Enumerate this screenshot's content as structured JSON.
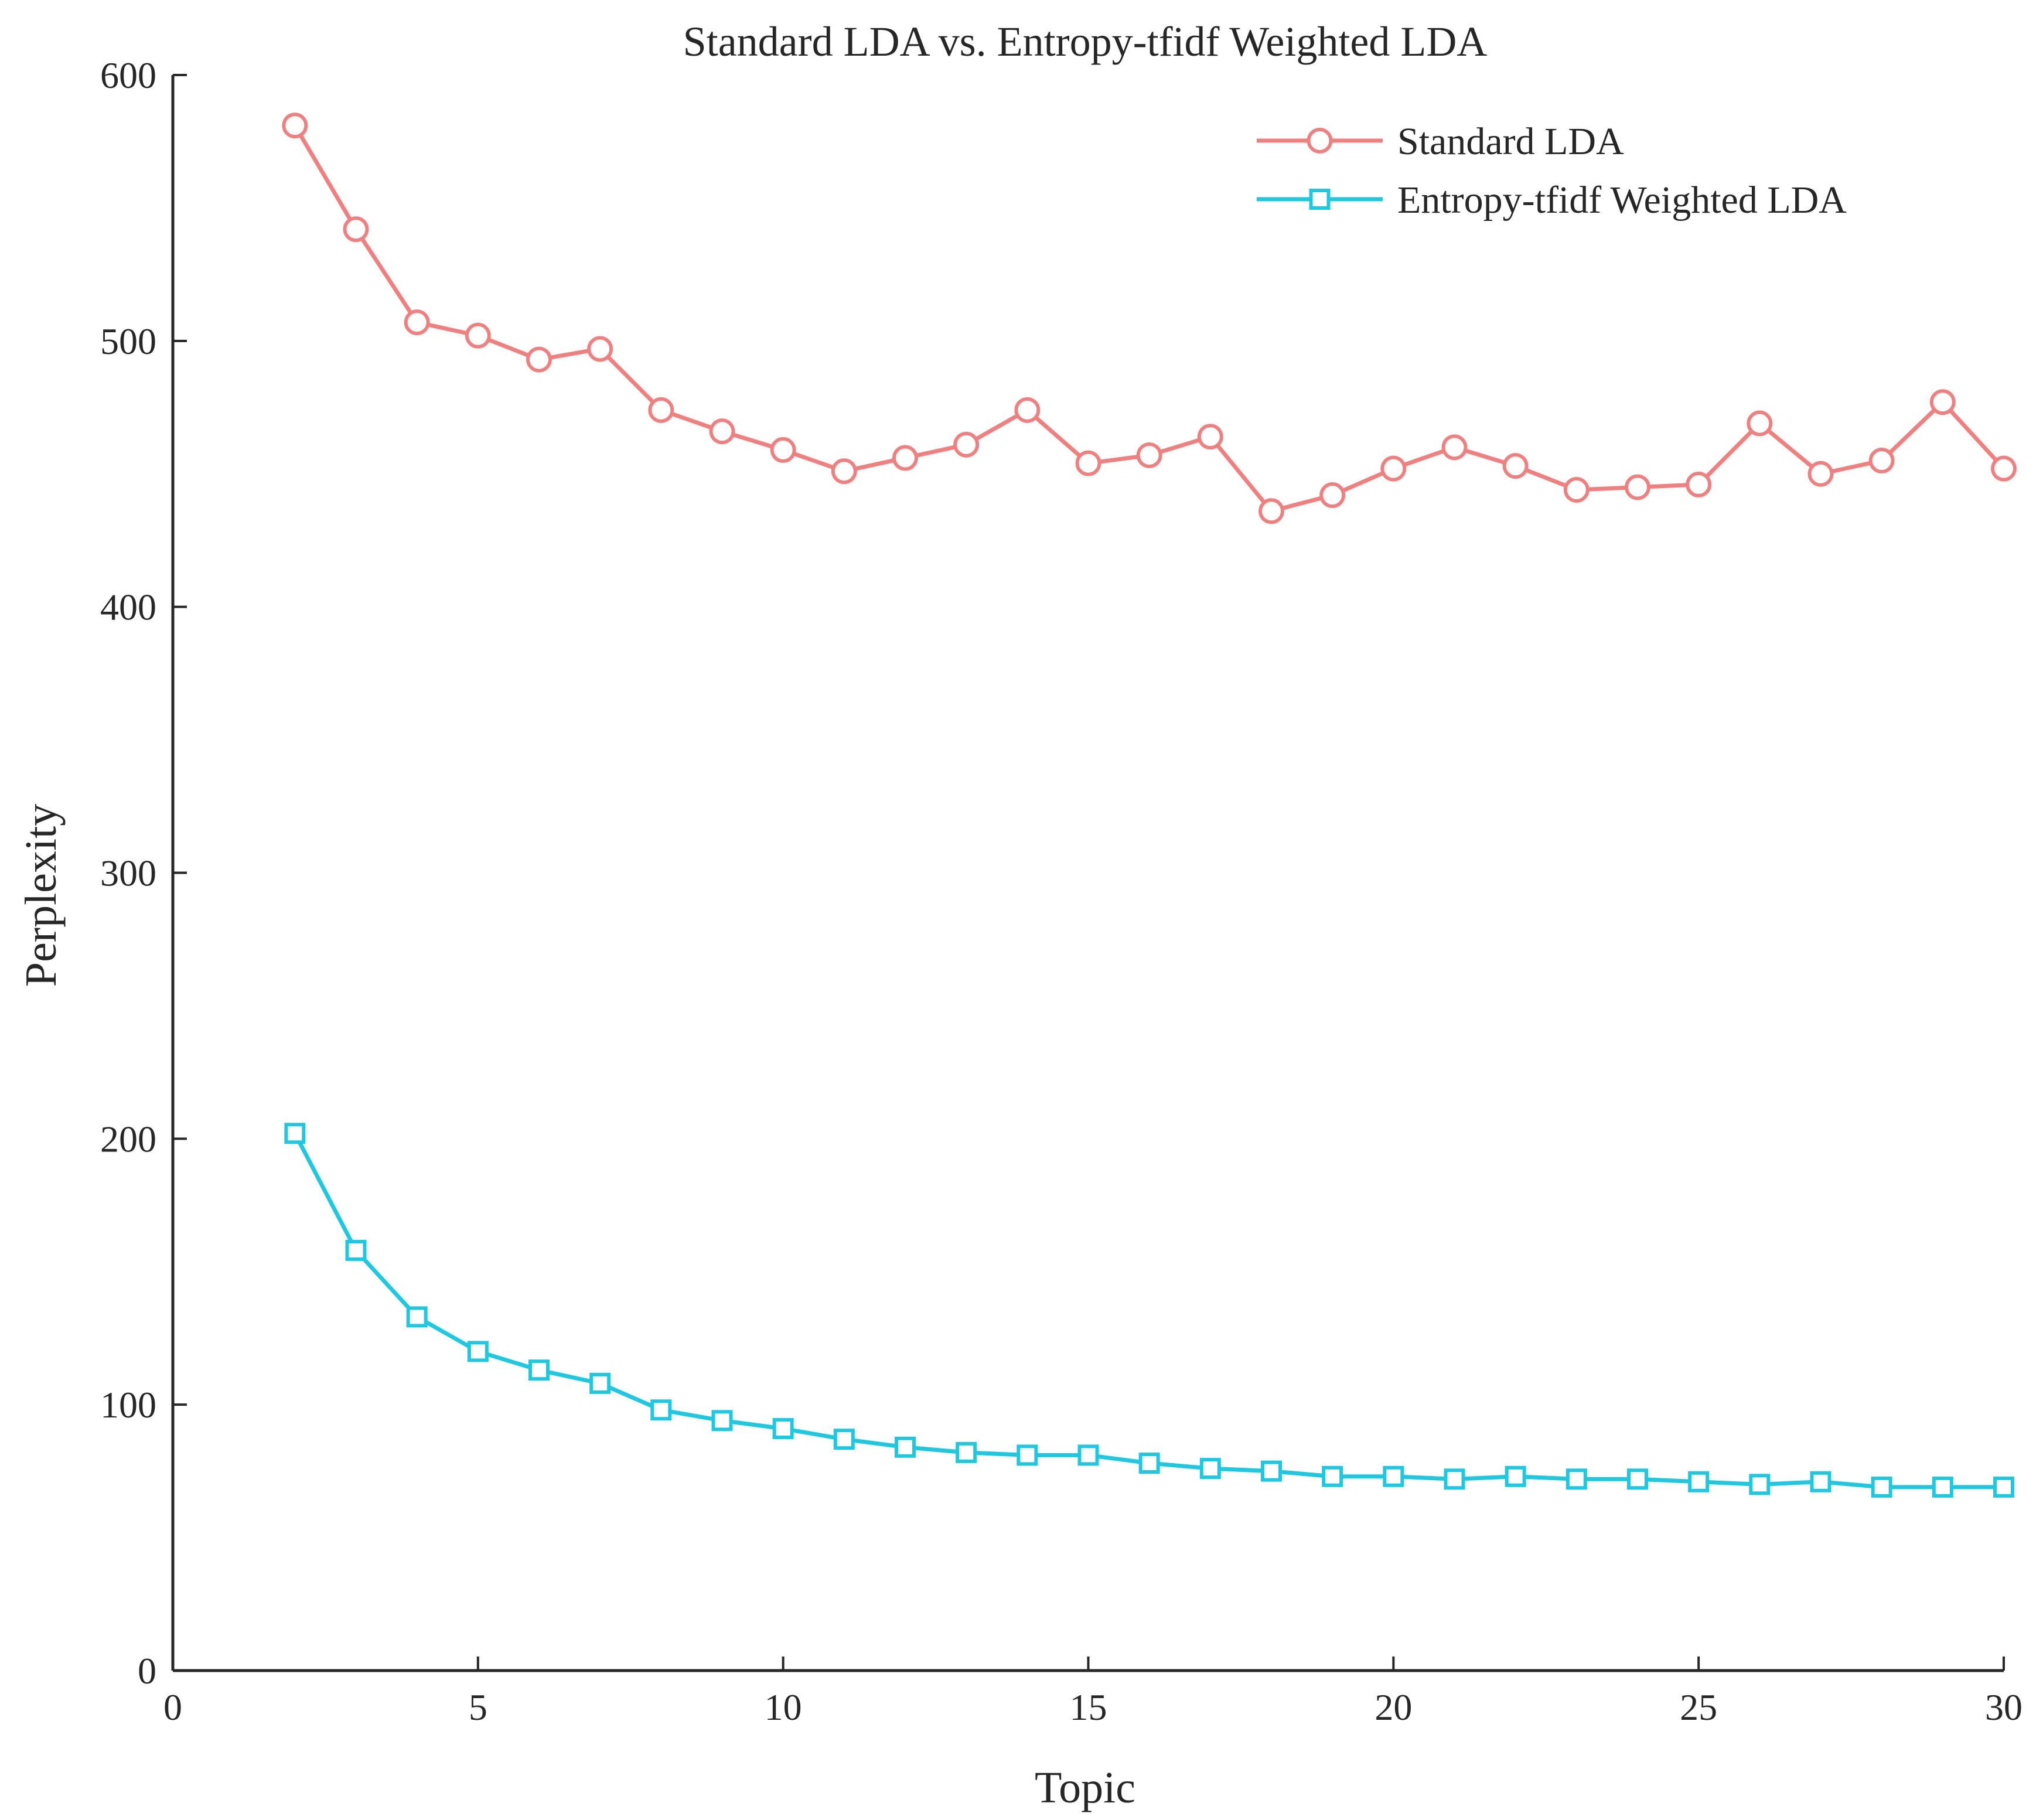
{
  "chart_data": {
    "type": "line",
    "title": "Standard LDA vs. Entropy-tfidf Weighted LDA",
    "xlabel": "Topic",
    "ylabel": "Perplexity",
    "xlim": [
      0,
      30
    ],
    "ylim": [
      0,
      600
    ],
    "xticks": [
      "0",
      "5",
      "10",
      "15",
      "20",
      "25",
      "30"
    ],
    "yticks": [
      "0",
      "100",
      "200",
      "300",
      "400",
      "500",
      "600"
    ],
    "grid": false,
    "legend_position": "top-right",
    "x": [
      2,
      3,
      4,
      5,
      6,
      7,
      8,
      9,
      10,
      11,
      12,
      13,
      14,
      15,
      16,
      17,
      18,
      19,
      20,
      21,
      22,
      23,
      24,
      25,
      26,
      27,
      28,
      29,
      30
    ],
    "series": [
      {
        "name": "Standard LDA",
        "color": "#f08080",
        "marker": "circle",
        "values": [
          581,
          542,
          507,
          502,
          493,
          497,
          474,
          466,
          459,
          451,
          456,
          461,
          474,
          454,
          457,
          464,
          436,
          442,
          452,
          460,
          453,
          444,
          445,
          446,
          469,
          450,
          455,
          477,
          452
        ]
      },
      {
        "name": "Entropy-tfidf Weighted LDA",
        "color": "#1ec8e0",
        "marker": "square",
        "values": [
          202,
          158,
          133,
          120,
          113,
          108,
          98,
          94,
          91,
          87,
          84,
          82,
          81,
          81,
          78,
          76,
          75,
          73,
          73,
          72,
          73,
          72,
          72,
          71,
          70,
          71,
          69,
          69,
          69
        ]
      }
    ]
  }
}
